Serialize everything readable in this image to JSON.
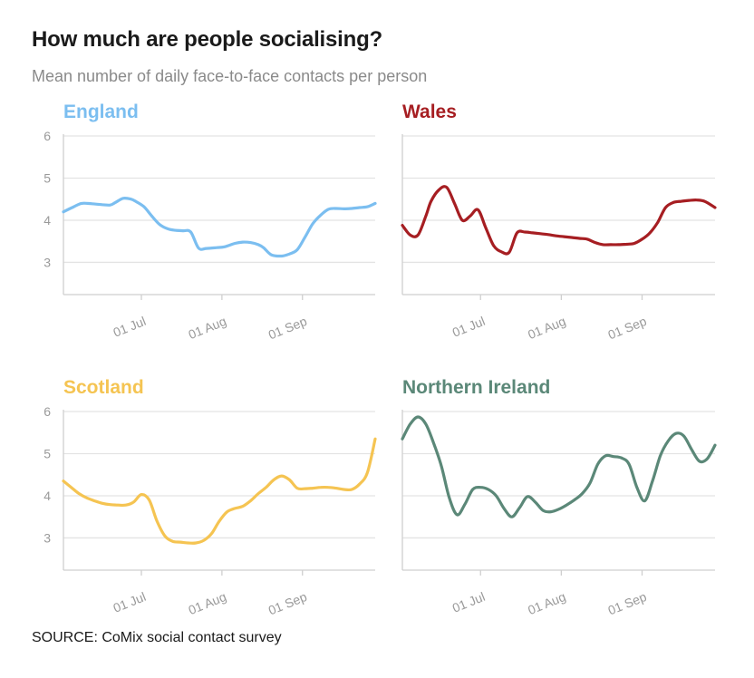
{
  "header": {
    "title": "How much are people socialising?",
    "subtitle": "Mean number of daily face-to-face contacts per person"
  },
  "footer": {
    "source": "SOURCE: CoMix social contact survey"
  },
  "chart_data": [
    {
      "type": "line",
      "title": "England",
      "color": "#7bbef0",
      "ylim": [
        2.3,
        6
      ],
      "yticks": [
        3,
        4,
        5,
        6
      ],
      "xlim": [
        0,
        120
      ],
      "xticks": [
        {
          "x": 30,
          "label": "01 Jul"
        },
        {
          "x": 61,
          "label": "01 Aug"
        },
        {
          "x": 92,
          "label": "01 Sep"
        }
      ],
      "x": [
        0,
        4,
        7,
        11,
        15,
        18,
        20,
        23,
        26,
        28,
        31,
        34,
        37,
        40,
        43,
        46,
        49,
        52,
        55,
        59,
        62,
        66,
        69,
        72,
        75,
        77,
        80,
        84,
        87,
        90,
        93,
        96,
        99,
        102,
        105,
        108,
        111,
        114,
        117,
        120
      ],
      "values": [
        4.2,
        4.32,
        4.4,
        4.39,
        4.37,
        4.36,
        4.42,
        4.52,
        4.5,
        4.44,
        4.32,
        4.1,
        3.9,
        3.8,
        3.76,
        3.75,
        3.72,
        3.34,
        3.33,
        3.35,
        3.37,
        3.45,
        3.48,
        3.47,
        3.42,
        3.35,
        3.18,
        3.15,
        3.2,
        3.3,
        3.6,
        3.92,
        4.12,
        4.26,
        4.28,
        4.27,
        4.28,
        4.3,
        4.32,
        4.4
      ]
    },
    {
      "type": "line",
      "title": "Wales",
      "color": "#a61e22",
      "ylim": [
        2.3,
        6
      ],
      "yticks": [
        3,
        4,
        5,
        6
      ],
      "xlim": [
        0,
        120
      ],
      "xticks": [
        {
          "x": 30,
          "label": "01 Jul"
        },
        {
          "x": 61,
          "label": "01 Aug"
        },
        {
          "x": 92,
          "label": "01 Sep"
        }
      ],
      "x": [
        0,
        3,
        6,
        9,
        11,
        14,
        17,
        20,
        23,
        26,
        29,
        32,
        35,
        38,
        41,
        44,
        47,
        50,
        53,
        56,
        59,
        62,
        65,
        68,
        71,
        74,
        77,
        80,
        83,
        86,
        89,
        92,
        95,
        98,
        101,
        104,
        107,
        110,
        113,
        116,
        120
      ],
      "values": [
        3.88,
        3.65,
        3.65,
        4.1,
        4.45,
        4.72,
        4.78,
        4.4,
        4.0,
        4.1,
        4.25,
        3.82,
        3.4,
        3.25,
        3.24,
        3.7,
        3.72,
        3.7,
        3.68,
        3.66,
        3.63,
        3.61,
        3.59,
        3.57,
        3.55,
        3.47,
        3.42,
        3.42,
        3.42,
        3.43,
        3.45,
        3.55,
        3.7,
        3.95,
        4.3,
        4.42,
        4.45,
        4.47,
        4.48,
        4.45,
        4.3
      ]
    },
    {
      "type": "line",
      "title": "Scotland",
      "color": "#f5c452",
      "ylim": [
        2.3,
        6
      ],
      "yticks": [
        3,
        4,
        5,
        6
      ],
      "xlim": [
        0,
        120
      ],
      "xticks": [
        {
          "x": 30,
          "label": "01 Jul"
        },
        {
          "x": 61,
          "label": "01 Aug"
        },
        {
          "x": 92,
          "label": "01 Sep"
        }
      ],
      "x": [
        0,
        3,
        6,
        9,
        12,
        15,
        18,
        21,
        24,
        27,
        30,
        33,
        36,
        39,
        42,
        45,
        48,
        51,
        54,
        57,
        60,
        63,
        66,
        69,
        72,
        75,
        78,
        81,
        84,
        87,
        90,
        93,
        96,
        99,
        102,
        105,
        108,
        111,
        114,
        117,
        120
      ],
      "values": [
        4.35,
        4.2,
        4.05,
        3.95,
        3.88,
        3.82,
        3.79,
        3.78,
        3.78,
        3.85,
        4.03,
        3.9,
        3.4,
        3.05,
        2.92,
        2.9,
        2.88,
        2.88,
        2.94,
        3.1,
        3.4,
        3.62,
        3.7,
        3.75,
        3.88,
        4.05,
        4.2,
        4.38,
        4.47,
        4.38,
        4.18,
        4.17,
        4.18,
        4.2,
        4.2,
        4.18,
        4.15,
        4.15,
        4.28,
        4.55,
        5.35
      ]
    },
    {
      "type": "line",
      "title": "Northern Ireland",
      "color": "#5b8878",
      "ylim": [
        2.3,
        6
      ],
      "yticks": [
        3,
        4,
        5,
        6
      ],
      "xlim": [
        0,
        120
      ],
      "xticks": [
        {
          "x": 30,
          "label": "01 Jul"
        },
        {
          "x": 61,
          "label": "01 Aug"
        },
        {
          "x": 92,
          "label": "01 Sep"
        }
      ],
      "x": [
        0,
        3,
        6,
        9,
        12,
        15,
        18,
        21,
        24,
        27,
        30,
        33,
        36,
        39,
        42,
        45,
        48,
        51,
        54,
        57,
        60,
        63,
        66,
        69,
        72,
        75,
        78,
        81,
        84,
        87,
        90,
        93,
        96,
        99,
        102,
        105,
        108,
        111,
        114,
        117,
        120
      ],
      "values": [
        5.35,
        5.7,
        5.87,
        5.7,
        5.25,
        4.7,
        3.95,
        3.55,
        3.8,
        4.15,
        4.2,
        4.15,
        4.0,
        3.7,
        3.5,
        3.72,
        3.98,
        3.85,
        3.65,
        3.62,
        3.68,
        3.78,
        3.9,
        4.05,
        4.3,
        4.75,
        4.95,
        4.93,
        4.9,
        4.75,
        4.2,
        3.88,
        4.35,
        4.95,
        5.3,
        5.48,
        5.42,
        5.1,
        4.82,
        4.88,
        5.2
      ]
    }
  ]
}
